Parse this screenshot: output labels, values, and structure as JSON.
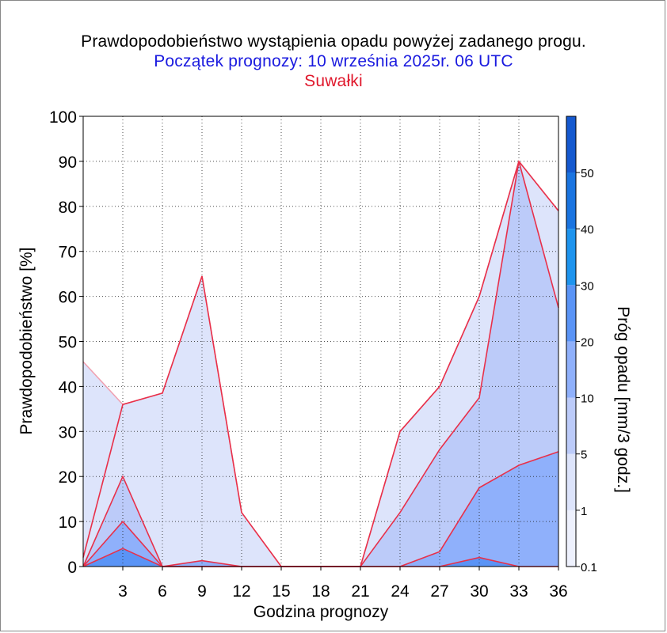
{
  "header": {
    "title": "Prawdopodobieństwo wystąpienia opadu powyżej zadanego progu.",
    "subtitle": "Początek prognozy: 10 września 2025r. 06 UTC",
    "station": "Suwałki"
  },
  "colors": {
    "title": "#000000",
    "subtitle": "#1a1adf",
    "station": "#e0182c",
    "series_line": "#e8304a"
  },
  "chart_data": {
    "type": "area",
    "title": "Prawdopodobieństwo wystąpienia opadu powyżej zadanego progu.",
    "subtitle": "Początek prognozy: 10 września 2025r. 06 UTC",
    "xlabel": "Godzina prognozy",
    "ylabel": "Prawdopodobieństwo [%]",
    "xlim": [
      0,
      36
    ],
    "ylim": [
      0,
      100
    ],
    "x": [
      0,
      3,
      6,
      9,
      12,
      15,
      18,
      21,
      24,
      27,
      30,
      33,
      36
    ],
    "x_ticks": [
      3,
      6,
      9,
      12,
      15,
      18,
      21,
      24,
      27,
      30,
      33,
      36
    ],
    "y_ticks": [
      0,
      10,
      20,
      30,
      40,
      50,
      60,
      70,
      80,
      90,
      100
    ],
    "grid": true,
    "series": [
      {
        "name": "0.1",
        "color": "#dde4fb",
        "values": [
          45.5,
          null,
          null,
          null,
          null,
          null,
          null,
          null,
          null,
          null,
          null,
          null,
          null
        ]
      },
      {
        "name": "1",
        "color": "#dde4fb",
        "values": [
          2,
          36,
          38.5,
          64.5,
          12,
          0,
          0,
          0,
          30,
          40,
          60,
          90,
          79
        ]
      },
      {
        "name": "5",
        "color": "#bccbf9",
        "values": [
          0,
          20,
          0,
          0,
          0,
          0,
          0,
          0,
          12,
          26,
          37.5,
          90,
          57.5
        ]
      },
      {
        "name": "10",
        "color": "#8fb0fb",
        "values": [
          0,
          10,
          0,
          1.3,
          0,
          0,
          0,
          0,
          0,
          3.3,
          17.5,
          22.5,
          25.5
        ]
      },
      {
        "name": "20",
        "color": "#5a94f6",
        "values": [
          0,
          4,
          0,
          0,
          0,
          0,
          0,
          0,
          0,
          0,
          2,
          0,
          0
        ]
      }
    ],
    "colorbar": {
      "label": "Próg opadu [mm/3 godz.]",
      "ticks": [
        "0.1",
        "1",
        "5",
        "10",
        "20",
        "30",
        "40",
        "50"
      ],
      "colors": [
        "#eef1fd",
        "#dde4fb",
        "#bccbf9",
        "#8fb0fb",
        "#5a94f6",
        "#1e94ee",
        "#1a74e0",
        "#1559cf",
        "#1244b0"
      ]
    }
  }
}
